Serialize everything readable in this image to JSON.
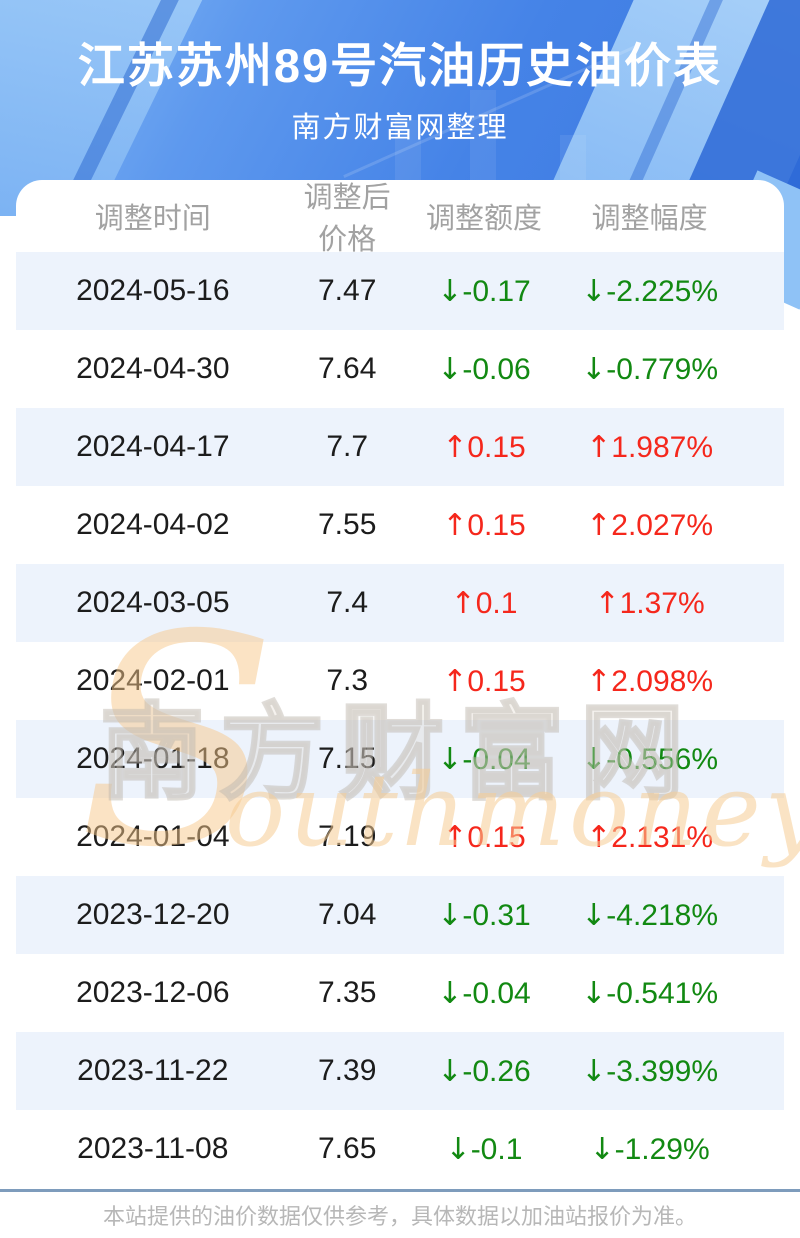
{
  "header": {
    "title": "江苏苏州89号汽油历史油价表",
    "subtitle": "南方财富网整理"
  },
  "table": {
    "columns": [
      "调整时间",
      "调整后价格",
      "调整额度",
      "调整幅度"
    ],
    "rows": [
      {
        "date": "2024-05-16",
        "price": "7.47",
        "change": "-0.17",
        "pct": "-2.225%",
        "dir": "down"
      },
      {
        "date": "2024-04-30",
        "price": "7.64",
        "change": "-0.06",
        "pct": "-0.779%",
        "dir": "down"
      },
      {
        "date": "2024-04-17",
        "price": "7.7",
        "change": "0.15",
        "pct": "1.987%",
        "dir": "up"
      },
      {
        "date": "2024-04-02",
        "price": "7.55",
        "change": "0.15",
        "pct": "2.027%",
        "dir": "up"
      },
      {
        "date": "2024-03-05",
        "price": "7.4",
        "change": "0.1",
        "pct": "1.37%",
        "dir": "up"
      },
      {
        "date": "2024-02-01",
        "price": "7.3",
        "change": "0.15",
        "pct": "2.098%",
        "dir": "up"
      },
      {
        "date": "2024-01-18",
        "price": "7.15",
        "change": "-0.04",
        "pct": "-0.556%",
        "dir": "down"
      },
      {
        "date": "2024-01-04",
        "price": "7.19",
        "change": "0.15",
        "pct": "2.131%",
        "dir": "up"
      },
      {
        "date": "2023-12-20",
        "price": "7.04",
        "change": "-0.31",
        "pct": "-4.218%",
        "dir": "down"
      },
      {
        "date": "2023-12-06",
        "price": "7.35",
        "change": "-0.04",
        "pct": "-0.541%",
        "dir": "down"
      },
      {
        "date": "2023-11-22",
        "price": "7.39",
        "change": "-0.26",
        "pct": "-3.399%",
        "dir": "down"
      },
      {
        "date": "2023-11-08",
        "price": "7.65",
        "change": "-0.1",
        "pct": "-1.29%",
        "dir": "down"
      }
    ]
  },
  "icons": {
    "up": "↑",
    "down": "↓"
  },
  "colors": {
    "up_red": "#f5271c",
    "down_green": "#128912",
    "header_blue": "#4583e7",
    "row_alt_blue": "#edf3fc",
    "divider_blue": "#7e9cbc"
  },
  "watermark": {
    "initial": "S",
    "cn": "南方财富网",
    "en": "outhmoney.com"
  },
  "footer": {
    "disclaimer": "本站提供的油价数据仅供参考，具体数据以加油站报价为准。"
  }
}
